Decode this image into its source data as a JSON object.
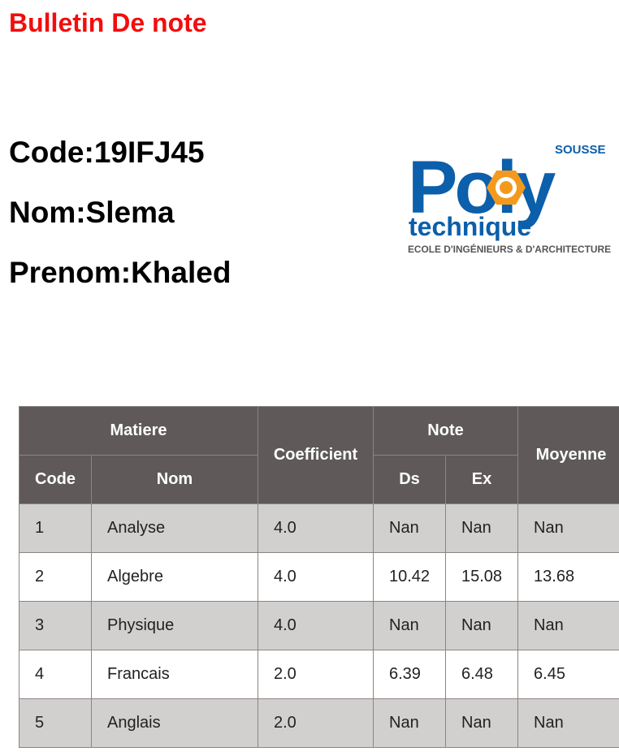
{
  "title": "Bulletin De note",
  "student": {
    "code_line": "Code:19IFJ45",
    "nom_line": "Nom:Slema",
    "prenom_line": "Prenom:Khaled"
  },
  "logo": {
    "top": "SOUSSE",
    "word1": "Poly",
    "word2": "technique",
    "tagline": "ECOLE D'INGÉNIEURS & D'ARCHITECTURE",
    "color": "#0b5fab",
    "accent": "#f39a1e"
  },
  "table": {
    "headers": {
      "matiere": "Matiere",
      "code": "Code",
      "nom": "Nom",
      "coefficient": "Coefficient",
      "note": "Note",
      "ds": "Ds",
      "ex": "Ex",
      "moyenne": "Moyenne"
    },
    "rows": [
      {
        "code": "1",
        "nom": "Analyse",
        "coef": "4.0",
        "ds": "Nan",
        "ex": "Nan",
        "moyenne": "Nan"
      },
      {
        "code": "2",
        "nom": "Algebre",
        "coef": "4.0",
        "ds": "10.42",
        "ex": "15.08",
        "moyenne": "13.68"
      },
      {
        "code": "3",
        "nom": "Physique",
        "coef": "4.0",
        "ds": "Nan",
        "ex": "Nan",
        "moyenne": "Nan"
      },
      {
        "code": "4",
        "nom": "Francais",
        "coef": "2.0",
        "ds": "6.39",
        "ex": "6.48",
        "moyenne": "6.45"
      },
      {
        "code": "5",
        "nom": "Anglais",
        "coef": "2.0",
        "ds": "Nan",
        "ex": "Nan",
        "moyenne": "Nan"
      }
    ]
  },
  "colors": {
    "title": "#f30d0d",
    "header_bg": "#5f5a59",
    "row_odd": "#d2d0cf",
    "row_even": "#ffffff"
  }
}
